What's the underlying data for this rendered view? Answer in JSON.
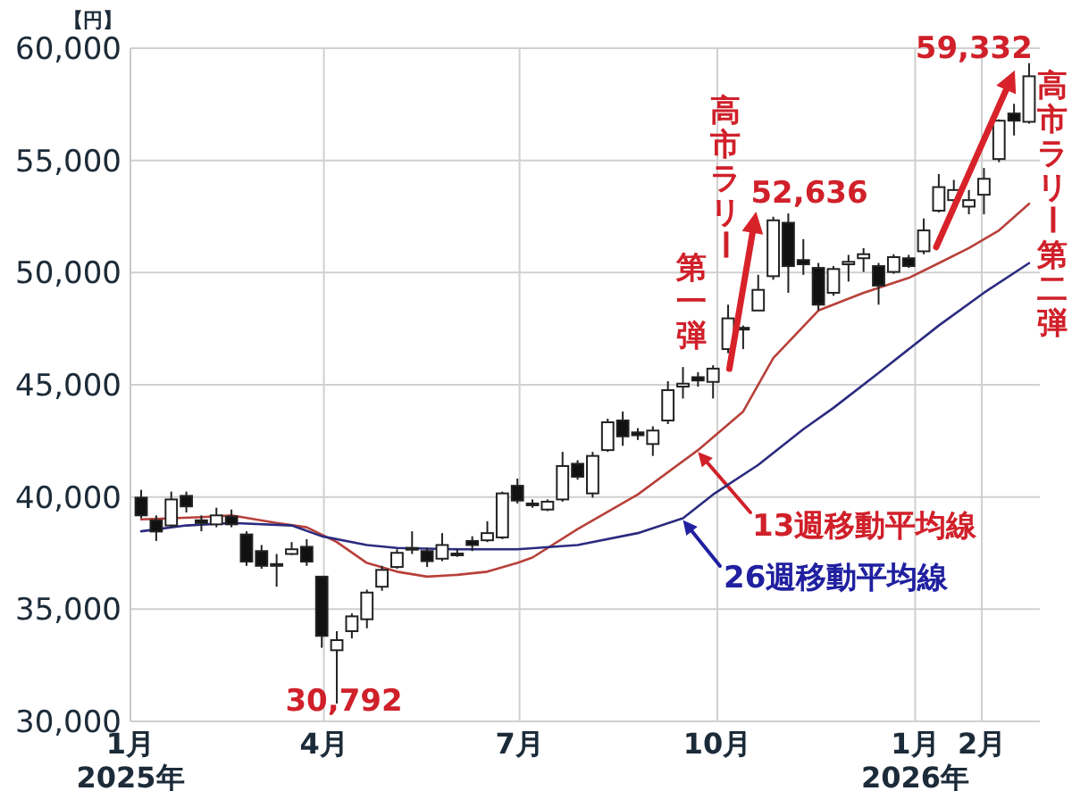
{
  "chart_data": {
    "type": "candlestick",
    "ylabel": "【円】",
    "x": [
      "2025-01-06",
      "2025-01-13",
      "2025-01-20",
      "2025-01-27",
      "2025-02-03",
      "2025-02-10",
      "2025-02-17",
      "2025-02-24",
      "2025-03-03",
      "2025-03-10",
      "2025-03-17",
      "2025-03-24",
      "2025-03-31",
      "2025-04-07",
      "2025-04-14",
      "2025-04-21",
      "2025-04-28",
      "2025-05-05",
      "2025-05-12",
      "2025-05-19",
      "2025-05-26",
      "2025-06-02",
      "2025-06-09",
      "2025-06-16",
      "2025-06-23",
      "2025-06-30",
      "2025-07-07",
      "2025-07-14",
      "2025-07-21",
      "2025-07-28",
      "2025-08-04",
      "2025-08-11",
      "2025-08-18",
      "2025-08-25",
      "2025-09-01",
      "2025-09-08",
      "2025-09-15",
      "2025-09-22",
      "2025-09-29",
      "2025-10-06",
      "2025-10-13",
      "2025-10-20",
      "2025-10-27",
      "2025-11-03",
      "2025-11-10",
      "2025-11-17",
      "2025-11-24",
      "2025-12-01",
      "2025-12-08",
      "2025-12-15",
      "2025-12-22",
      "2025-12-29",
      "2026-01-05",
      "2026-01-12",
      "2026-01-19",
      "2026-01-26",
      "2026-02-02",
      "2026-02-09",
      "2026-02-16",
      "2026-02-23"
    ],
    "ohlc": [
      [
        39970,
        40320,
        39050,
        39180
      ],
      [
        38960,
        39180,
        38040,
        38460
      ],
      [
        38730,
        40240,
        38650,
        39890
      ],
      [
        40050,
        40240,
        39310,
        39580
      ],
      [
        38960,
        39180,
        38470,
        38840
      ],
      [
        38780,
        39520,
        38650,
        39180
      ],
      [
        39130,
        39440,
        38650,
        38780
      ],
      [
        38330,
        38470,
        36930,
        37120
      ],
      [
        37590,
        37860,
        36800,
        36930
      ],
      [
        37010,
        37460,
        36000,
        36960
      ],
      [
        37460,
        37990,
        37410,
        37670
      ],
      [
        37780,
        38120,
        36930,
        37120
      ],
      [
        36450,
        36450,
        33280,
        33810
      ],
      [
        33170,
        34020,
        30792,
        33620
      ],
      [
        34020,
        34810,
        33700,
        34680
      ],
      [
        34550,
        35870,
        34150,
        35740
      ],
      [
        36000,
        36930,
        35820,
        36750
      ],
      [
        36880,
        37670,
        36800,
        37510
      ],
      [
        37720,
        38470,
        37460,
        37730
      ],
      [
        37590,
        37730,
        36880,
        37140
      ],
      [
        37250,
        38390,
        37140,
        37860
      ],
      [
        37460,
        37670,
        37330,
        37480
      ],
      [
        38040,
        38250,
        37590,
        37860
      ],
      [
        38070,
        38920,
        37990,
        38390
      ],
      [
        38200,
        40240,
        38120,
        40160
      ],
      [
        40500,
        40820,
        39710,
        39840
      ],
      [
        39710,
        39890,
        39520,
        39630
      ],
      [
        39440,
        39890,
        39370,
        39790
      ],
      [
        39890,
        42010,
        39790,
        41380
      ],
      [
        41480,
        41640,
        40770,
        40900
      ],
      [
        40160,
        42010,
        39970,
        41830
      ],
      [
        42090,
        43490,
        42010,
        43330
      ],
      [
        43410,
        43810,
        42280,
        42700
      ],
      [
        42880,
        43070,
        42540,
        42750
      ],
      [
        42360,
        43150,
        41830,
        42960
      ],
      [
        43410,
        45160,
        43250,
        44760
      ],
      [
        44920,
        45790,
        44390,
        45050
      ],
      [
        45340,
        45560,
        44920,
        45190
      ],
      [
        45130,
        45870,
        44390,
        45720
      ],
      [
        46590,
        48570,
        46410,
        47960
      ],
      [
        47480,
        47640,
        46590,
        47540
      ],
      [
        48310,
        49900,
        48310,
        49230
      ],
      [
        49840,
        52490,
        49680,
        52330
      ],
      [
        52220,
        52636,
        49100,
        50290
      ],
      [
        50560,
        51490,
        49900,
        50370
      ],
      [
        50210,
        50430,
        48310,
        48570
      ],
      [
        49100,
        50290,
        48970,
        50160
      ],
      [
        50370,
        50790,
        49600,
        50480
      ],
      [
        50640,
        51090,
        50030,
        50820
      ],
      [
        50290,
        50430,
        48570,
        49420
      ],
      [
        50030,
        50820,
        49950,
        50690
      ],
      [
        50640,
        50790,
        50210,
        50290
      ],
      [
        50950,
        52410,
        50820,
        51880
      ],
      [
        52760,
        54390,
        52680,
        53810
      ],
      [
        53230,
        54130,
        52940,
        53680
      ],
      [
        52940,
        53680,
        52600,
        53230
      ],
      [
        53470,
        54660,
        52600,
        54180
      ],
      [
        55060,
        56830,
        54920,
        56770
      ],
      [
        57090,
        57520,
        56110,
        56770
      ],
      [
        56720,
        59332,
        56640,
        58750
      ]
    ],
    "series": [
      {
        "name": "13週移動平均線",
        "type": "line",
        "color": "#b8403a",
        "x": [
          "2025-01-06",
          "2025-02-03",
          "2025-02-17",
          "2025-03-10",
          "2025-03-24",
          "2025-04-07",
          "2025-04-21",
          "2025-05-05",
          "2025-05-19",
          "2025-06-02",
          "2025-06-16",
          "2025-06-30",
          "2025-07-07",
          "2025-07-28",
          "2025-08-25",
          "2025-09-22",
          "2025-10-13",
          "2025-10-27",
          "2025-11-17",
          "2025-12-08",
          "2025-12-29",
          "2026-01-12",
          "2026-01-26",
          "2026-02-09",
          "2026-02-23"
        ],
        "values": [
          39000,
          39100,
          39180,
          38840,
          38650,
          37990,
          37060,
          36670,
          36450,
          36530,
          36670,
          37060,
          37300,
          38570,
          40110,
          42090,
          43810,
          46190,
          48310,
          49100,
          49760,
          50420,
          51090,
          51880,
          53070
        ]
      },
      {
        "name": "26週移動平均線",
        "type": "line",
        "color": "#2b2b80",
        "x": [
          "2025-01-06",
          "2025-01-27",
          "2025-02-17",
          "2025-03-17",
          "2025-03-31",
          "2025-04-21",
          "2025-05-05",
          "2025-06-02",
          "2025-06-30",
          "2025-07-28",
          "2025-08-25",
          "2025-09-15",
          "2025-09-29",
          "2025-10-20",
          "2025-11-10",
          "2025-11-24",
          "2025-12-15",
          "2026-01-12",
          "2026-02-02",
          "2026-02-23"
        ],
        "values": [
          38470,
          38730,
          38840,
          38730,
          38250,
          37860,
          37730,
          37670,
          37670,
          37860,
          38390,
          39050,
          40110,
          41430,
          43020,
          43970,
          45530,
          47640,
          49100,
          50420
        ]
      }
    ],
    "xlim": [
      "2025-01-01",
      "2026-02-28"
    ],
    "xticks": [
      {
        "value": "2025-01-01",
        "label": "1月\n2025年"
      },
      {
        "value": "2025-04-01",
        "label": "4月"
      },
      {
        "value": "2025-07-01",
        "label": "7月"
      },
      {
        "value": "2025-10-01",
        "label": "10月"
      },
      {
        "value": "2026-01-01",
        "label": "1月\n2026年"
      },
      {
        "value": "2026-02-01",
        "label": "2月"
      }
    ],
    "ylim": [
      30000,
      60000
    ],
    "yticks": [
      {
        "value": 30000,
        "label": "30,000"
      },
      {
        "value": 35000,
        "label": "35,000"
      },
      {
        "value": 40000,
        "label": "40,000"
      },
      {
        "value": 45000,
        "label": "45,000"
      },
      {
        "value": 50000,
        "label": "50,000"
      },
      {
        "value": 55000,
        "label": "55,000"
      },
      {
        "value": 60000,
        "label": "60,000"
      }
    ],
    "grid": true,
    "annotations": [
      {
        "text": "30,792",
        "x": "2025-04-07",
        "y": 30792
      },
      {
        "text": "52,636",
        "x": "2025-11-03",
        "y": 52636
      },
      {
        "text": "59,332",
        "x": "2026-02-23",
        "y": 59332
      },
      {
        "text": "高市ラリー第一弾",
        "x": "2025-11-03",
        "y": 52636
      },
      {
        "text": "高市ラリー第二弾",
        "x": "2026-02-23",
        "y": 59332
      }
    ]
  }
}
